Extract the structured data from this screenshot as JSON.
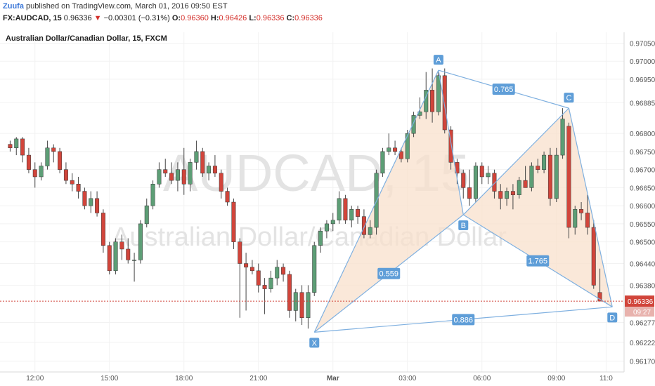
{
  "header": {
    "author": "Zuufa",
    "published": "published on TradingView.com, March 01, 2016 09:50 EST"
  },
  "quote": {
    "symbol": "FX:AUDCAD, 15",
    "last": "0.96336",
    "change_arrow": "▼",
    "change": "−0.00301 (−0.31%)",
    "o_label": "O:",
    "o_value": "0.96360",
    "h_label": "H:",
    "h_value": "0.96426",
    "l_label": "L:",
    "l_value": "0.96336",
    "c_label": "C:",
    "c_value": "0.96336"
  },
  "colors": {
    "up": "#5d9e76",
    "down": "#d1453b",
    "pattern_line": "#7fb0e0",
    "pattern_fill": "#f8e0cc",
    "label_bg": "#5f9ed8",
    "price_line": "#d1453b",
    "watermark": "#e3e3e3"
  },
  "chart_data": {
    "type": "candlestick",
    "title": "Australian Dollar/Canadian Dollar, 15, FXCM",
    "watermark": {
      "symbol": "AUDCAD, 15",
      "name": "Australian Dollar/Canadian Dollar"
    },
    "ylim": [
      0.9614,
      0.9708
    ],
    "y_ticks": [
      "0.97050",
      "0.97000",
      "0.96950",
      "0.96885",
      "0.96800",
      "0.96750",
      "0.96700",
      "0.96650",
      "0.96600",
      "0.96550",
      "0.96500",
      "0.96440",
      "0.96380",
      "0.96336",
      "0.96277",
      "0.96222",
      "0.96170"
    ],
    "y_tick_values": [
      0.9705,
      0.97,
      0.9695,
      0.96885,
      0.968,
      0.9675,
      0.967,
      0.9665,
      0.966,
      0.9655,
      0.965,
      0.9644,
      0.9638,
      0.96336,
      0.96277,
      0.96222,
      0.9617
    ],
    "x_ticks": [
      {
        "label": "12:00",
        "i": 4
      },
      {
        "label": "15:00",
        "i": 16
      },
      {
        "label": "18:00",
        "i": 28
      },
      {
        "label": "21:00",
        "i": 40
      },
      {
        "label": "Mar",
        "i": 52,
        "bold": true
      },
      {
        "label": "03:00",
        "i": 64
      },
      {
        "label": "06:00",
        "i": 76
      },
      {
        "label": "09:00",
        "i": 88
      },
      {
        "label": "11:0",
        "i": 96
      }
    ],
    "last_price": {
      "value": 0.96336,
      "label": "0.96336",
      "countdown": "09:27"
    },
    "candles": [
      {
        "o": 0.9677,
        "h": 0.9678,
        "l": 0.9675,
        "c": 0.9676
      },
      {
        "o": 0.9676,
        "h": 0.9679,
        "l": 0.9674,
        "c": 0.96785
      },
      {
        "o": 0.96785,
        "h": 0.9679,
        "l": 0.9672,
        "c": 0.9674
      },
      {
        "o": 0.9674,
        "h": 0.9676,
        "l": 0.9669,
        "c": 0.967
      },
      {
        "o": 0.967,
        "h": 0.9672,
        "l": 0.9665,
        "c": 0.9668
      },
      {
        "o": 0.9668,
        "h": 0.9672,
        "l": 0.9667,
        "c": 0.9671
      },
      {
        "o": 0.9671,
        "h": 0.9678,
        "l": 0.967,
        "c": 0.9676
      },
      {
        "o": 0.9676,
        "h": 0.9677,
        "l": 0.9672,
        "c": 0.9675
      },
      {
        "o": 0.9675,
        "h": 0.9676,
        "l": 0.9669,
        "c": 0.967
      },
      {
        "o": 0.967,
        "h": 0.9672,
        "l": 0.9666,
        "c": 0.9667
      },
      {
        "o": 0.9667,
        "h": 0.9669,
        "l": 0.9664,
        "c": 0.9666
      },
      {
        "o": 0.9666,
        "h": 0.9668,
        "l": 0.9662,
        "c": 0.9664
      },
      {
        "o": 0.9664,
        "h": 0.9665,
        "l": 0.9659,
        "c": 0.966
      },
      {
        "o": 0.966,
        "h": 0.9664,
        "l": 0.9658,
        "c": 0.9662
      },
      {
        "o": 0.9662,
        "h": 0.9664,
        "l": 0.9657,
        "c": 0.9658
      },
      {
        "o": 0.9658,
        "h": 0.9659,
        "l": 0.9647,
        "c": 0.9649
      },
      {
        "o": 0.9649,
        "h": 0.965,
        "l": 0.9641,
        "c": 0.9642
      },
      {
        "o": 0.9642,
        "h": 0.9651,
        "l": 0.9641,
        "c": 0.965
      },
      {
        "o": 0.965,
        "h": 0.9652,
        "l": 0.9645,
        "c": 0.9648
      },
      {
        "o": 0.9648,
        "h": 0.9651,
        "l": 0.9644,
        "c": 0.9645
      },
      {
        "o": 0.9645,
        "h": 0.9647,
        "l": 0.9639,
        "c": 0.9645
      },
      {
        "o": 0.9645,
        "h": 0.9656,
        "l": 0.9644,
        "c": 0.9655
      },
      {
        "o": 0.9655,
        "h": 0.9662,
        "l": 0.9654,
        "c": 0.966
      },
      {
        "o": 0.966,
        "h": 0.9667,
        "l": 0.9659,
        "c": 0.9666
      },
      {
        "o": 0.9666,
        "h": 0.9672,
        "l": 0.9665,
        "c": 0.967
      },
      {
        "o": 0.967,
        "h": 0.9673,
        "l": 0.9668,
        "c": 0.9669
      },
      {
        "o": 0.9669,
        "h": 0.9672,
        "l": 0.9666,
        "c": 0.9667
      },
      {
        "o": 0.9667,
        "h": 0.9672,
        "l": 0.9664,
        "c": 0.967
      },
      {
        "o": 0.967,
        "h": 0.9676,
        "l": 0.9663,
        "c": 0.9666
      },
      {
        "o": 0.9666,
        "h": 0.9673,
        "l": 0.9664,
        "c": 0.9672
      },
      {
        "o": 0.9672,
        "h": 0.9678,
        "l": 0.967,
        "c": 0.9675
      },
      {
        "o": 0.9675,
        "h": 0.9676,
        "l": 0.9668,
        "c": 0.9669
      },
      {
        "o": 0.9669,
        "h": 0.9672,
        "l": 0.9667,
        "c": 0.9671
      },
      {
        "o": 0.9671,
        "h": 0.9674,
        "l": 0.9668,
        "c": 0.9669
      },
      {
        "o": 0.9669,
        "h": 0.967,
        "l": 0.9662,
        "c": 0.9664
      },
      {
        "o": 0.9664,
        "h": 0.9665,
        "l": 0.966,
        "c": 0.9661
      },
      {
        "o": 0.9661,
        "h": 0.9662,
        "l": 0.9648,
        "c": 0.965
      },
      {
        "o": 0.965,
        "h": 0.9651,
        "l": 0.9629,
        "c": 0.9644
      },
      {
        "o": 0.9644,
        "h": 0.9647,
        "l": 0.9631,
        "c": 0.9643
      },
      {
        "o": 0.9643,
        "h": 0.9645,
        "l": 0.9641,
        "c": 0.9642
      },
      {
        "o": 0.9642,
        "h": 0.9644,
        "l": 0.9636,
        "c": 0.9638
      },
      {
        "o": 0.9638,
        "h": 0.964,
        "l": 0.963,
        "c": 0.9637
      },
      {
        "o": 0.9637,
        "h": 0.9642,
        "l": 0.9636,
        "c": 0.964
      },
      {
        "o": 0.964,
        "h": 0.9645,
        "l": 0.9638,
        "c": 0.9643
      },
      {
        "o": 0.9643,
        "h": 0.9644,
        "l": 0.9639,
        "c": 0.9641
      },
      {
        "o": 0.9641,
        "h": 0.9642,
        "l": 0.9629,
        "c": 0.9631
      },
      {
        "o": 0.9631,
        "h": 0.9637,
        "l": 0.9628,
        "c": 0.9636
      },
      {
        "o": 0.9636,
        "h": 0.9638,
        "l": 0.9627,
        "c": 0.9629
      },
      {
        "o": 0.9629,
        "h": 0.9638,
        "l": 0.9626,
        "c": 0.9636
      },
      {
        "o": 0.9636,
        "h": 0.965,
        "l": 0.9635,
        "c": 0.9649
      },
      {
        "o": 0.9649,
        "h": 0.9654,
        "l": 0.9647,
        "c": 0.9653
      },
      {
        "o": 0.9653,
        "h": 0.9656,
        "l": 0.9651,
        "c": 0.9655
      },
      {
        "o": 0.9655,
        "h": 0.9658,
        "l": 0.9653,
        "c": 0.9656
      },
      {
        "o": 0.9656,
        "h": 0.9664,
        "l": 0.9655,
        "c": 0.9662
      },
      {
        "o": 0.9662,
        "h": 0.9663,
        "l": 0.9655,
        "c": 0.9656
      },
      {
        "o": 0.9656,
        "h": 0.966,
        "l": 0.9654,
        "c": 0.9659
      },
      {
        "o": 0.9659,
        "h": 0.966,
        "l": 0.9655,
        "c": 0.9657
      },
      {
        "o": 0.9657,
        "h": 0.9659,
        "l": 0.9651,
        "c": 0.9652
      },
      {
        "o": 0.9652,
        "h": 0.9656,
        "l": 0.9651,
        "c": 0.9654
      },
      {
        "o": 0.9654,
        "h": 0.967,
        "l": 0.9652,
        "c": 0.9669
      },
      {
        "o": 0.9669,
        "h": 0.9676,
        "l": 0.9668,
        "c": 0.9675
      },
      {
        "o": 0.9675,
        "h": 0.968,
        "l": 0.9674,
        "c": 0.9676
      },
      {
        "o": 0.9676,
        "h": 0.9678,
        "l": 0.9674,
        "c": 0.9675
      },
      {
        "o": 0.9675,
        "h": 0.9676,
        "l": 0.9672,
        "c": 0.9673
      },
      {
        "o": 0.9673,
        "h": 0.9681,
        "l": 0.9672,
        "c": 0.968
      },
      {
        "o": 0.968,
        "h": 0.9686,
        "l": 0.9679,
        "c": 0.9685
      },
      {
        "o": 0.9685,
        "h": 0.969,
        "l": 0.9684,
        "c": 0.9686
      },
      {
        "o": 0.9686,
        "h": 0.9697,
        "l": 0.9684,
        "c": 0.9692
      },
      {
        "o": 0.9692,
        "h": 0.9698,
        "l": 0.9683,
        "c": 0.9686
      },
      {
        "o": 0.9686,
        "h": 0.9697,
        "l": 0.9685,
        "c": 0.9696
      },
      {
        "o": 0.9696,
        "h": 0.9698,
        "l": 0.968,
        "c": 0.9681
      },
      {
        "o": 0.9681,
        "h": 0.9682,
        "l": 0.967,
        "c": 0.9672
      },
      {
        "o": 0.9672,
        "h": 0.9673,
        "l": 0.9666,
        "c": 0.9669
      },
      {
        "o": 0.9669,
        "h": 0.967,
        "l": 0.9662,
        "c": 0.9665
      },
      {
        "o": 0.9665,
        "h": 0.967,
        "l": 0.966,
        "c": 0.9662
      },
      {
        "o": 0.9662,
        "h": 0.9672,
        "l": 0.9661,
        "c": 0.9671
      },
      {
        "o": 0.9671,
        "h": 0.9672,
        "l": 0.9666,
        "c": 0.9668
      },
      {
        "o": 0.9668,
        "h": 0.9671,
        "l": 0.9666,
        "c": 0.9669
      },
      {
        "o": 0.9669,
        "h": 0.967,
        "l": 0.9662,
        "c": 0.9664
      },
      {
        "o": 0.9664,
        "h": 0.9666,
        "l": 0.9659,
        "c": 0.9662
      },
      {
        "o": 0.9662,
        "h": 0.9665,
        "l": 0.966,
        "c": 0.9664
      },
      {
        "o": 0.9664,
        "h": 0.9666,
        "l": 0.9659,
        "c": 0.9663
      },
      {
        "o": 0.9663,
        "h": 0.9668,
        "l": 0.9662,
        "c": 0.9667
      },
      {
        "o": 0.9667,
        "h": 0.9671,
        "l": 0.9665,
        "c": 0.9665
      },
      {
        "o": 0.9665,
        "h": 0.9672,
        "l": 0.9664,
        "c": 0.9671
      },
      {
        "o": 0.9671,
        "h": 0.9673,
        "l": 0.9669,
        "c": 0.967
      },
      {
        "o": 0.967,
        "h": 0.9675,
        "l": 0.9669,
        "c": 0.9674
      },
      {
        "o": 0.9674,
        "h": 0.9676,
        "l": 0.966,
        "c": 0.9662
      },
      {
        "o": 0.9662,
        "h": 0.9676,
        "l": 0.9661,
        "c": 0.9674
      },
      {
        "o": 0.9674,
        "h": 0.9687,
        "l": 0.9673,
        "c": 0.9684
      },
      {
        "o": 0.9682,
        "h": 0.9683,
        "l": 0.9651,
        "c": 0.9654
      },
      {
        "o": 0.9654,
        "h": 0.966,
        "l": 0.9652,
        "c": 0.9659
      },
      {
        "o": 0.9659,
        "h": 0.9661,
        "l": 0.9656,
        "c": 0.9658
      },
      {
        "o": 0.9658,
        "h": 0.9663,
        "l": 0.9652,
        "c": 0.9654
      },
      {
        "o": 0.9654,
        "h": 0.9656,
        "l": 0.9637,
        "c": 0.9638
      },
      {
        "o": 0.9636,
        "h": 0.96426,
        "l": 0.96336,
        "c": 0.96336
      }
    ],
    "pattern": {
      "points": [
        {
          "label": "X",
          "i": 49,
          "price": 0.9625
        },
        {
          "label": "A",
          "i": 69,
          "price": 0.96975
        },
        {
          "label": "B",
          "i": 73,
          "price": 0.96575
        },
        {
          "label": "C",
          "i": 90,
          "price": 0.9687
        },
        {
          "label": "D",
          "i": 97,
          "price": 0.9632
        }
      ],
      "ratios": [
        {
          "label": "0.559",
          "from": "X",
          "to": "B"
        },
        {
          "label": "0.765",
          "from": "A",
          "to": "C"
        },
        {
          "label": "1.765",
          "from": "B",
          "to": "D"
        },
        {
          "label": "0.886",
          "from": "X",
          "to": "D"
        }
      ]
    }
  }
}
